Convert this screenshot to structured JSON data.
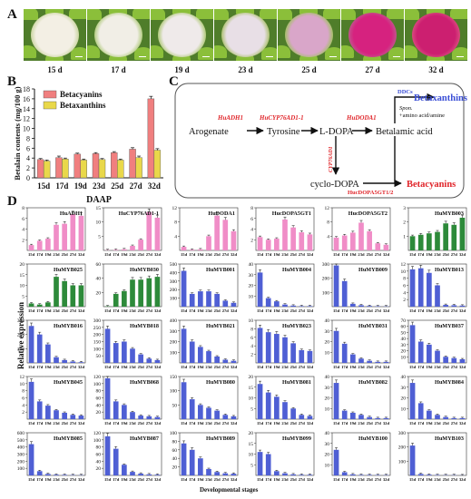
{
  "panel_a": {
    "letter": "A",
    "photos": [
      {
        "label": "15 d",
        "flesh": "#f3efe4",
        "rim": "#cfd8a8"
      },
      {
        "label": "17 d",
        "flesh": "#f1eee6",
        "rim": "#b9cf8a"
      },
      {
        "label": "19 d",
        "flesh": "#efeaea",
        "rim": "#b6cc84"
      },
      {
        "label": "23 d",
        "flesh": "#e8dfe6",
        "rim": "#b3c47c"
      },
      {
        "label": "25 d",
        "flesh": "#d9a6c9",
        "rim": "#a9bd70"
      },
      {
        "label": "27 d",
        "flesh": "#d6227f",
        "rim": "#c44f8c"
      },
      {
        "label": "32 d",
        "flesh": "#cc1f70",
        "rim": "#d9467e"
      }
    ]
  },
  "panel_b": {
    "letter": "B",
    "chart_data": {
      "type": "bar",
      "categories": [
        "15d",
        "17d",
        "19d",
        "23d",
        "25d",
        "27d",
        "32d"
      ],
      "series": [
        {
          "name": "Betacyanins",
          "color": "#f07f7f",
          "values": [
            3.7,
            4.1,
            4.8,
            4.9,
            5.1,
            5.8,
            16.0
          ],
          "errors": [
            0.2,
            0.3,
            0.2,
            0.2,
            0.2,
            0.3,
            0.5
          ]
        },
        {
          "name": "Betaxanthins",
          "color": "#e9d84a",
          "values": [
            3.4,
            3.8,
            3.6,
            3.7,
            3.6,
            4.1,
            5.6
          ],
          "errors": [
            0.2,
            0.2,
            0.2,
            0.2,
            0.2,
            0.3,
            0.3
          ]
        }
      ],
      "ylabel": "Betalain contents (mg/100 g)",
      "xlabel": "DAAP",
      "yticks": [
        0,
        2,
        4,
        6,
        8,
        10,
        12,
        14,
        16,
        18
      ],
      "ylim": [
        0,
        18
      ],
      "legend_position": "top-left"
    }
  },
  "panel_c": {
    "letter": "C",
    "nodes": {
      "arogenate": "Arogenate",
      "tyrosine": "Tyrosine",
      "ldopa": "L-DOPA",
      "betalamic": "Betalamic acid",
      "betaxanthins": "Betaxanthins",
      "cyclodopa": "cyclo-DOPA",
      "betacyanins": "Betacyanins"
    },
    "enzymes": {
      "adh1": "HuADH1",
      "cyp76": "HuCYP76AD1-1",
      "doda1": "HuDODA1",
      "cyp76_vert": "CYP76AD1",
      "ddcs": "DDCs",
      "spon": "Spon.",
      "amino": "+amino acid/amine",
      "gt": "HucDOPA5GT1/2"
    }
  },
  "panel_d": {
    "letter": "D",
    "ylabel": "Relative expression",
    "xlabel": "Developmental stages",
    "stages": [
      "15d",
      "17d",
      "19d",
      "23d",
      "25d",
      "27d",
      "32d"
    ],
    "charts": [
      {
        "title": "HuADH1",
        "color": "#f08dc7",
        "ymax": 8,
        "yticks": [
          2,
          4,
          6,
          8
        ],
        "values": [
          1.0,
          1.8,
          2.2,
          4.8,
          5.0,
          6.8,
          6.5
        ]
      },
      {
        "title": "HuCYP76AD1-1",
        "color": "#f08dc7",
        "ymax": 15,
        "yticks": [
          5,
          10,
          15
        ],
        "values": [
          0.1,
          0.2,
          0.4,
          1.6,
          3.8,
          13.5,
          11.5
        ]
      },
      {
        "title": "HuDODA1",
        "color": "#f08dc7",
        "ymax": 12,
        "yticks": [
          4,
          8,
          12
        ],
        "values": [
          1.0,
          0.2,
          0.3,
          4.0,
          9.8,
          8.6,
          5.4
        ]
      },
      {
        "title": "HucDOPA5GT1",
        "color": "#f08dc7",
        "ymax": 8,
        "yticks": [
          2,
          4,
          6,
          8
        ],
        "values": [
          2.5,
          2.0,
          2.2,
          5.8,
          4.3,
          3.4,
          3.0
        ]
      },
      {
        "title": "HucDOPA5GT2",
        "color": "#f08dc7",
        "ymax": 12,
        "yticks": [
          4,
          8,
          12
        ],
        "values": [
          3.6,
          4.2,
          5.0,
          7.8,
          5.4,
          2.0,
          1.6
        ]
      },
      {
        "title": "HuMYB003",
        "color": "#2d8a3a",
        "ymax": 3,
        "yticks": [
          1,
          2,
          3
        ],
        "values": [
          1.0,
          1.1,
          1.2,
          1.3,
          1.9,
          1.8,
          2.3
        ]
      },
      {
        "title": "HuMYB025",
        "color": "#2d8a3a",
        "ymax": 20,
        "yticks": [
          5,
          10,
          15,
          20
        ],
        "values": [
          1.5,
          1.0,
          2.0,
          14.0,
          12.0,
          10.0,
          10.0
        ]
      },
      {
        "title": "HuMYB030",
        "color": "#2d8a3a",
        "ymax": 60,
        "yticks": [
          20,
          40,
          60
        ],
        "values": [
          0.5,
          18.0,
          22.0,
          38.0,
          38.0,
          40.0,
          42.0
        ]
      },
      {
        "title": "HuMYB001",
        "color": "#4f5fd4",
        "ymax": 500,
        "yticks": [
          100,
          200,
          300,
          400,
          500
        ],
        "values": [
          420,
          150,
          180,
          180,
          150,
          70,
          45
        ]
      },
      {
        "title": "HuMYB004",
        "color": "#4f5fd4",
        "ymax": 40,
        "yticks": [
          10,
          20,
          30,
          40
        ],
        "values": [
          32,
          8,
          5,
          2,
          1,
          0.5,
          0.5
        ]
      },
      {
        "title": "HuMYB009",
        "color": "#4f5fd4",
        "ymax": 300,
        "yticks": [
          100,
          200,
          300
        ],
        "values": [
          290,
          180,
          20,
          10,
          5,
          3,
          2
        ]
      },
      {
        "title": "HuMYB013",
        "color": "#4f5fd4",
        "ymax": 12,
        "yticks": [
          2,
          4,
          6,
          8,
          10,
          12
        ],
        "values": [
          10.5,
          10.8,
          9.5,
          6.0,
          0.5,
          0.4,
          0.3
        ]
      },
      {
        "title": "HuMYB016",
        "color": "#4f5fd4",
        "ymax": 300,
        "yticks": [
          100,
          200,
          300
        ],
        "values": [
          260,
          200,
          130,
          40,
          20,
          10,
          5
        ]
      },
      {
        "title": "HuMYB018",
        "color": "#4f5fd4",
        "ymax": 300,
        "yticks": [
          50,
          100,
          150,
          200,
          250,
          300
        ],
        "values": [
          240,
          140,
          150,
          100,
          60,
          30,
          20
        ]
      },
      {
        "title": "HuMYB021",
        "color": "#4f5fd4",
        "ymax": 400,
        "yticks": [
          100,
          200,
          300,
          400
        ],
        "values": [
          320,
          200,
          150,
          110,
          60,
          30,
          20
        ]
      },
      {
        "title": "HuMYB023",
        "color": "#4f5fd4",
        "ymax": 10,
        "yticks": [
          2,
          4,
          6,
          8,
          10
        ],
        "values": [
          8.2,
          7.2,
          6.8,
          6.0,
          4.6,
          3.0,
          2.8
        ]
      },
      {
        "title": "HuMYB031",
        "color": "#4f5fd4",
        "ymax": 40,
        "yticks": [
          10,
          20,
          30,
          40
        ],
        "values": [
          30,
          18,
          8,
          4,
          2,
          1,
          1
        ]
      },
      {
        "title": "HuMYB037",
        "color": "#4f5fd4",
        "ymax": 70,
        "yticks": [
          10,
          20,
          30,
          40,
          50,
          60,
          70
        ],
        "values": [
          62,
          35,
          30,
          20,
          10,
          8,
          6
        ]
      },
      {
        "title": "HuMYB045",
        "color": "#4f5fd4",
        "ymax": 12,
        "yticks": [
          2,
          4,
          6,
          8,
          10,
          12
        ],
        "values": [
          10.5,
          5.0,
          3.8,
          2.5,
          1.8,
          1.2,
          1.0
        ]
      },
      {
        "title": "HuMYB068",
        "color": "#4f5fd4",
        "ymax": 120,
        "yticks": [
          20,
          40,
          60,
          80,
          100,
          120
        ],
        "values": [
          115,
          50,
          40,
          20,
          10,
          8,
          6
        ]
      },
      {
        "title": "HuMYB080",
        "color": "#4f5fd4",
        "ymax": 150,
        "yticks": [
          50,
          100,
          150
        ],
        "values": [
          130,
          70,
          50,
          40,
          30,
          15,
          10
        ]
      },
      {
        "title": "HuMYB081",
        "color": "#4f5fd4",
        "ymax": 20,
        "yticks": [
          5,
          10,
          15,
          20
        ],
        "values": [
          16.5,
          12.5,
          10.5,
          8.0,
          5.0,
          2.0,
          1.5
        ]
      },
      {
        "title": "HuMYB082",
        "color": "#4f5fd4",
        "ymax": 40,
        "yticks": [
          10,
          20,
          30,
          40
        ],
        "values": [
          34,
          8,
          6,
          4,
          2,
          1,
          1
        ]
      },
      {
        "title": "HuMYB084",
        "color": "#4f5fd4",
        "ymax": 40,
        "yticks": [
          10,
          20,
          30,
          40
        ],
        "values": [
          34,
          15,
          8,
          4,
          2,
          1,
          1
        ]
      },
      {
        "title": "HuMYB085",
        "color": "#4f5fd4",
        "ymax": 600,
        "yticks": [
          100,
          200,
          300,
          400,
          500,
          600
        ],
        "values": [
          440,
          60,
          20,
          10,
          8,
          5,
          4
        ]
      },
      {
        "title": "HuMYB087",
        "color": "#4f5fd4",
        "ymax": 120,
        "yticks": [
          20,
          40,
          60,
          80,
          100,
          120
        ],
        "values": [
          110,
          75,
          30,
          10,
          5,
          3,
          2
        ]
      },
      {
        "title": "HuMYB089",
        "color": "#4f5fd4",
        "ymax": 100,
        "yticks": [
          20,
          40,
          60,
          80,
          100
        ],
        "values": [
          75,
          60,
          40,
          15,
          8,
          5,
          4
        ]
      },
      {
        "title": "HuMYB099",
        "color": "#4f5fd4",
        "ymax": 20,
        "yticks": [
          5,
          10,
          15,
          20
        ],
        "values": [
          11.0,
          10.0,
          2.0,
          1.0,
          0.5,
          0.3,
          0.3
        ]
      },
      {
        "title": "HuMYB100",
        "color": "#4f5fd4",
        "ymax": 40,
        "yticks": [
          10,
          20,
          30,
          40
        ],
        "values": [
          24,
          3,
          1,
          0.5,
          0.5,
          0.4,
          0.3
        ]
      },
      {
        "title": "HuMYB103",
        "color": "#4f5fd4",
        "ymax": 300,
        "yticks": [
          100,
          200,
          300
        ],
        "values": [
          210,
          10,
          5,
          3,
          2,
          2,
          1
        ]
      }
    ]
  }
}
